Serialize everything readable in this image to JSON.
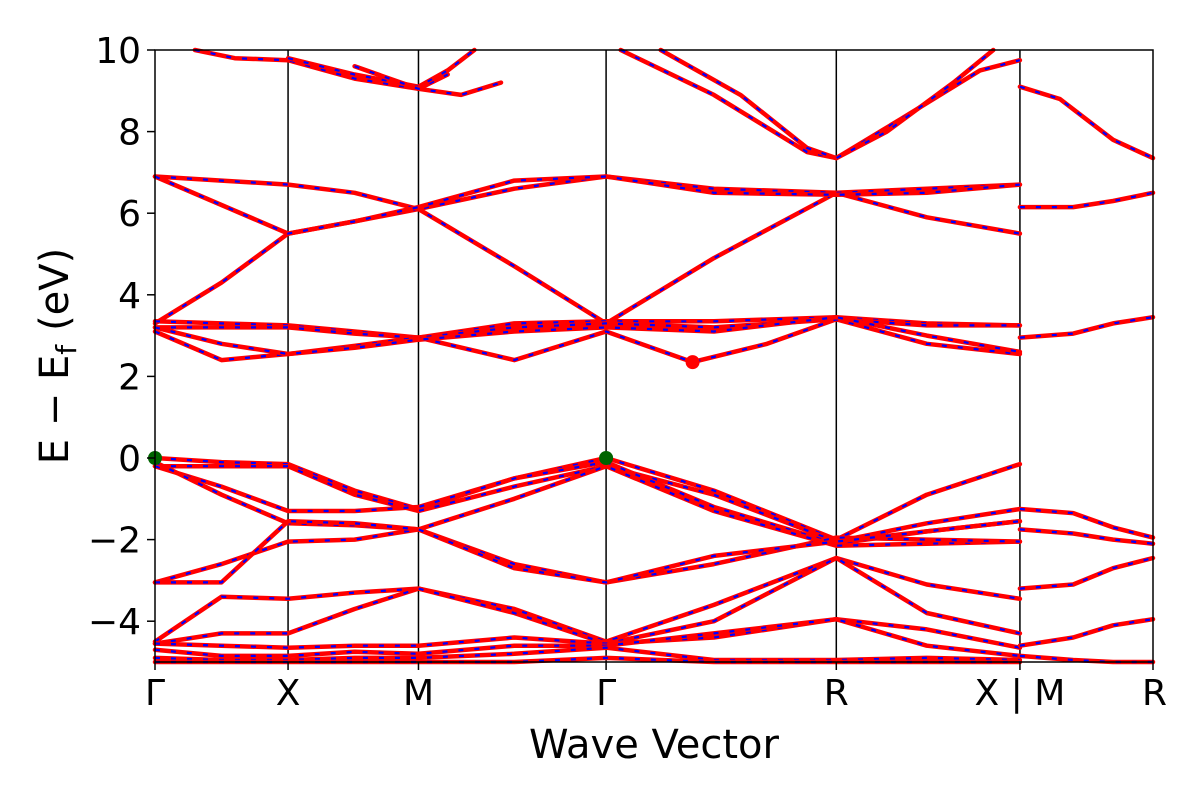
{
  "chart_data": {
    "type": "line",
    "title": "",
    "xlabel": "Wave Vector",
    "ylabel": {
      "main": "E − E",
      "subscript": "f",
      "unit": "(eV)"
    },
    "ylim": [
      -5,
      10
    ],
    "yticks": [
      "−4",
      "−2",
      "0",
      "2",
      "4",
      "6",
      "8",
      "10"
    ],
    "ytick_values": [
      -4,
      -2,
      0,
      2,
      4,
      6,
      8,
      10
    ],
    "xlim": [
      0,
      7.5
    ],
    "kpoint_ticks": [
      {
        "label": "Γ",
        "x": 0
      },
      {
        "label": "X",
        "x": 1.0
      },
      {
        "label": "M",
        "x": 1.98
      },
      {
        "label": "Γ",
        "x": 3.39
      },
      {
        "label": "R",
        "x": 5.12
      },
      {
        "label": "X | M",
        "x": 6.5
      },
      {
        "label": "R",
        "x": 7.5
      }
    ],
    "colors": {
      "band_primary": "#ff0000",
      "band_overlay": "#0000ff",
      "vbm_marker": "#006400",
      "cbm_marker": "#ff0000"
    },
    "markers": [
      {
        "name": "VBM",
        "points": [
          [
            0,
            0
          ],
          [
            3.39,
            0
          ]
        ],
        "color": "#006400"
      },
      {
        "name": "CBM",
        "points": [
          [
            4.04,
            2.35
          ]
        ],
        "color": "#ff0000"
      }
    ],
    "bands": [
      [
        [
          0,
          3.3
        ],
        [
          0.5,
          4.3
        ],
        [
          1.0,
          5.5
        ],
        [
          1.5,
          5.8
        ],
        [
          1.98,
          6.1
        ],
        [
          2.7,
          4.7
        ],
        [
          3.39,
          3.3
        ],
        [
          4.2,
          4.9
        ],
        [
          5.12,
          6.5
        ],
        [
          5.8,
          5.9
        ],
        [
          6.5,
          5.5
        ]
      ],
      [
        [
          0,
          6.9
        ],
        [
          0.5,
          6.8
        ],
        [
          1.0,
          6.7
        ],
        [
          1.5,
          6.5
        ],
        [
          1.98,
          6.1
        ],
        [
          2.7,
          6.6
        ],
        [
          3.39,
          6.9
        ],
        [
          4.2,
          6.6
        ],
        [
          5.12,
          6.5
        ],
        [
          5.8,
          6.6
        ],
        [
          6.5,
          6.7
        ]
      ],
      [
        [
          0,
          6.9
        ],
        [
          0.5,
          6.2
        ],
        [
          1.0,
          5.5
        ],
        [
          1.5,
          5.8
        ],
        [
          1.98,
          6.15
        ],
        [
          2.7,
          6.8
        ],
        [
          3.39,
          6.9
        ],
        [
          4.2,
          6.5
        ],
        [
          5.12,
          6.45
        ],
        [
          5.8,
          6.5
        ],
        [
          6.5,
          6.7
        ]
      ],
      [
        [
          0,
          3.35
        ],
        [
          0.5,
          3.3
        ],
        [
          1.0,
          3.25
        ],
        [
          1.5,
          3.1
        ],
        [
          1.98,
          2.95
        ],
        [
          2.7,
          3.3
        ],
        [
          3.39,
          3.35
        ],
        [
          4.2,
          3.35
        ],
        [
          5.12,
          3.45
        ],
        [
          5.8,
          3.3
        ],
        [
          6.5,
          3.25
        ]
      ],
      [
        [
          0,
          3.2
        ],
        [
          0.5,
          3.2
        ],
        [
          1.0,
          3.2
        ],
        [
          1.5,
          3.05
        ],
        [
          1.98,
          2.95
        ],
        [
          2.7,
          3.2
        ],
        [
          3.39,
          3.3
        ],
        [
          4.2,
          3.2
        ],
        [
          5.12,
          3.4
        ],
        [
          5.8,
          3.25
        ],
        [
          6.5,
          3.25
        ]
      ],
      [
        [
          0,
          3.1
        ],
        [
          0.5,
          2.4
        ],
        [
          1.0,
          2.55
        ],
        [
          1.5,
          2.75
        ],
        [
          1.98,
          2.95
        ],
        [
          2.7,
          2.4
        ],
        [
          3.39,
          3.1
        ],
        [
          4.04,
          2.35
        ],
        [
          4.6,
          2.8
        ],
        [
          5.12,
          3.4
        ],
        [
          5.8,
          2.8
        ],
        [
          6.5,
          2.55
        ]
      ],
      [
        [
          0,
          3.2
        ],
        [
          0.5,
          2.8
        ],
        [
          1.0,
          2.55
        ],
        [
          1.5,
          2.7
        ],
        [
          1.98,
          2.9
        ],
        [
          2.7,
          3.1
        ],
        [
          3.39,
          3.2
        ],
        [
          4.2,
          3.1
        ],
        [
          5.12,
          3.45
        ],
        [
          5.8,
          3.0
        ],
        [
          6.5,
          2.6
        ]
      ],
      [
        [
          0,
          0
        ],
        [
          0.5,
          -0.1
        ],
        [
          1.0,
          -0.15
        ],
        [
          1.5,
          -0.8
        ],
        [
          1.98,
          -1.25
        ],
        [
          2.7,
          -0.5
        ],
        [
          3.39,
          0
        ],
        [
          4.2,
          -0.8
        ],
        [
          5.12,
          -2.0
        ],
        [
          5.8,
          -0.9
        ],
        [
          6.5,
          -0.15
        ]
      ],
      [
        [
          0,
          -0.2
        ],
        [
          0.5,
          -0.2
        ],
        [
          1.0,
          -0.2
        ],
        [
          1.5,
          -0.9
        ],
        [
          1.98,
          -1.3
        ],
        [
          2.7,
          -0.7
        ],
        [
          3.39,
          -0.2
        ],
        [
          4.2,
          -0.9
        ],
        [
          5.12,
          -2.05
        ],
        [
          5.8,
          -1.6
        ],
        [
          6.5,
          -1.25
        ]
      ],
      [
        [
          0,
          -0.2
        ],
        [
          0.5,
          -0.7
        ],
        [
          1.0,
          -1.3
        ],
        [
          1.5,
          -1.3
        ],
        [
          1.98,
          -1.2
        ],
        [
          2.7,
          -0.5
        ],
        [
          3.39,
          -0.1
        ],
        [
          4.2,
          -1.2
        ],
        [
          5.12,
          -2.1
        ],
        [
          5.8,
          -1.8
        ],
        [
          6.5,
          -1.55
        ]
      ],
      [
        [
          0,
          -0.1
        ],
        [
          0.5,
          -0.9
        ],
        [
          1.0,
          -1.6
        ],
        [
          1.5,
          -1.65
        ],
        [
          1.98,
          -1.75
        ],
        [
          2.7,
          -1.0
        ],
        [
          3.39,
          -0.2
        ],
        [
          4.2,
          -1.3
        ],
        [
          5.12,
          -2.15
        ],
        [
          5.8,
          -2.1
        ],
        [
          6.5,
          -2.05
        ]
      ],
      [
        [
          0,
          -3.05
        ],
        [
          0.5,
          -2.6
        ],
        [
          1.0,
          -2.05
        ],
        [
          1.5,
          -2.0
        ],
        [
          1.98,
          -1.75
        ],
        [
          2.7,
          -2.6
        ],
        [
          3.39,
          -3.05
        ],
        [
          4.2,
          -2.6
        ],
        [
          5.12,
          -1.95
        ],
        [
          5.8,
          -2.0
        ],
        [
          6.5,
          -2.05
        ]
      ],
      [
        [
          0,
          -3.05
        ],
        [
          0.5,
          -3.05
        ],
        [
          1.0,
          -1.55
        ],
        [
          1.5,
          -1.6
        ],
        [
          1.98,
          -1.75
        ],
        [
          2.7,
          -2.7
        ],
        [
          3.39,
          -3.05
        ],
        [
          4.2,
          -2.4
        ],
        [
          5.12,
          -2.05
        ],
        [
          5.8,
          -1.8
        ],
        [
          6.5,
          -1.55
        ]
      ],
      [
        [
          0,
          -4.5
        ],
        [
          0.5,
          -3.4
        ],
        [
          1.0,
          -3.45
        ],
        [
          1.5,
          -3.3
        ],
        [
          1.98,
          -3.2
        ],
        [
          2.7,
          -3.7
        ],
        [
          3.39,
          -4.5
        ],
        [
          4.2,
          -3.6
        ],
        [
          5.12,
          -2.45
        ],
        [
          5.8,
          -3.1
        ],
        [
          6.5,
          -3.45
        ]
      ],
      [
        [
          0,
          -4.55
        ],
        [
          0.5,
          -4.3
        ],
        [
          1.0,
          -4.3
        ],
        [
          1.5,
          -3.7
        ],
        [
          1.98,
          -3.2
        ],
        [
          2.7,
          -3.8
        ],
        [
          3.39,
          -4.55
        ],
        [
          4.2,
          -4.0
        ],
        [
          5.12,
          -2.45
        ],
        [
          5.8,
          -3.8
        ],
        [
          6.5,
          -4.3
        ]
      ],
      [
        [
          0,
          -4.55
        ],
        [
          0.5,
          -4.6
        ],
        [
          1.0,
          -4.65
        ],
        [
          1.5,
          -4.6
        ],
        [
          1.98,
          -4.6
        ],
        [
          2.7,
          -4.4
        ],
        [
          3.39,
          -4.55
        ],
        [
          4.2,
          -4.4
        ],
        [
          5.12,
          -3.95
        ],
        [
          5.8,
          -4.2
        ],
        [
          6.5,
          -4.65
        ]
      ],
      [
        [
          0,
          -4.7
        ],
        [
          0.5,
          -4.85
        ],
        [
          1.0,
          -4.85
        ],
        [
          1.5,
          -4.75
        ],
        [
          1.98,
          -4.8
        ],
        [
          2.7,
          -4.6
        ],
        [
          3.39,
          -4.6
        ],
        [
          4.2,
          -4.3
        ],
        [
          5.12,
          -3.95
        ],
        [
          5.8,
          -4.6
        ],
        [
          6.5,
          -4.85
        ]
      ],
      [
        [
          0,
          -4.9
        ],
        [
          0.5,
          -4.95
        ],
        [
          1.0,
          -4.95
        ],
        [
          1.5,
          -4.9
        ],
        [
          1.98,
          -4.9
        ],
        [
          2.7,
          -4.8
        ],
        [
          3.39,
          -4.65
        ],
        [
          4.2,
          -4.95
        ],
        [
          5.12,
          -4.95
        ],
        [
          5.8,
          -4.9
        ],
        [
          6.5,
          -4.95
        ]
      ],
      [
        [
          0,
          -5.0
        ],
        [
          0.5,
          -5.0
        ],
        [
          1.0,
          -5.0
        ],
        [
          1.5,
          -5.0
        ],
        [
          1.98,
          -5.0
        ],
        [
          2.7,
          -5.0
        ],
        [
          3.39,
          -4.9
        ],
        [
          4.2,
          -5.0
        ],
        [
          5.12,
          -5.0
        ],
        [
          5.8,
          -5.0
        ],
        [
          6.5,
          -5.0
        ]
      ],
      [
        [
          0.3,
          10.0
        ],
        [
          0.6,
          9.8
        ],
        [
          1.0,
          9.75
        ],
        [
          1.5,
          9.3
        ],
        [
          1.98,
          9.05
        ],
        [
          2.2,
          9.4
        ]
      ],
      [
        [
          1.0,
          9.8
        ],
        [
          1.5,
          9.4
        ],
        [
          1.98,
          9.1
        ],
        [
          2.2,
          9.5
        ],
        [
          2.4,
          10.0
        ]
      ],
      [
        [
          1.5,
          9.6
        ],
        [
          1.98,
          9.05
        ],
        [
          2.3,
          8.9
        ],
        [
          2.6,
          9.2
        ]
      ],
      [
        [
          3.5,
          10.0
        ],
        [
          4.2,
          8.9
        ],
        [
          4.9,
          7.5
        ],
        [
          5.12,
          7.35
        ],
        [
          5.6,
          8.3
        ],
        [
          6.2,
          9.5
        ],
        [
          6.5,
          9.75
        ]
      ],
      [
        [
          3.8,
          10.0
        ],
        [
          4.4,
          8.9
        ],
        [
          4.9,
          7.6
        ],
        [
          5.12,
          7.35
        ],
        [
          5.5,
          8.0
        ],
        [
          6.0,
          9.2
        ],
        [
          6.3,
          10.0
        ]
      ],
      [
        [
          6.5,
          9.1
        ],
        [
          6.8,
          8.8
        ],
        [
          7.2,
          7.8
        ],
        [
          7.5,
          7.35
        ]
      ],
      [
        [
          6.5,
          6.15
        ],
        [
          6.9,
          6.15
        ],
        [
          7.2,
          6.3
        ],
        [
          7.5,
          6.5
        ]
      ],
      [
        [
          6.5,
          2.95
        ],
        [
          6.9,
          3.05
        ],
        [
          7.2,
          3.3
        ],
        [
          7.5,
          3.45
        ]
      ],
      [
        [
          6.5,
          -1.25
        ],
        [
          6.9,
          -1.35
        ],
        [
          7.2,
          -1.7
        ],
        [
          7.5,
          -1.95
        ]
      ],
      [
        [
          6.5,
          -1.75
        ],
        [
          6.9,
          -1.85
        ],
        [
          7.2,
          -2.0
        ],
        [
          7.5,
          -2.1
        ]
      ],
      [
        [
          6.5,
          -3.2
        ],
        [
          6.9,
          -3.1
        ],
        [
          7.2,
          -2.7
        ],
        [
          7.5,
          -2.45
        ]
      ],
      [
        [
          6.5,
          -4.6
        ],
        [
          6.9,
          -4.4
        ],
        [
          7.2,
          -4.1
        ],
        [
          7.5,
          -3.95
        ]
      ],
      [
        [
          6.5,
          -4.85
        ],
        [
          6.9,
          -4.95
        ],
        [
          7.2,
          -5.0
        ],
        [
          7.5,
          -5.0
        ]
      ]
    ]
  }
}
